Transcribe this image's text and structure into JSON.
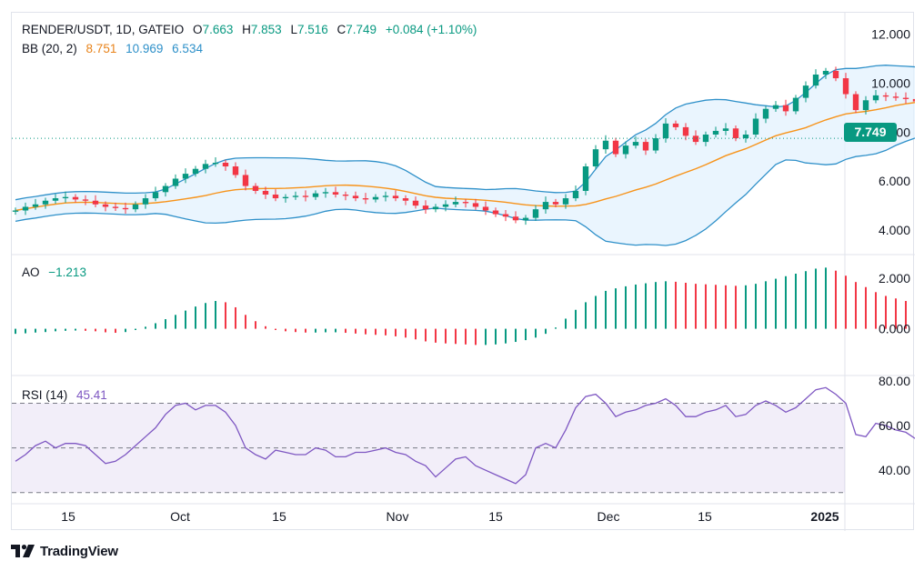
{
  "header": {
    "symbol": "RENDER/USDT, 1D, GATEIO",
    "open_label": "O",
    "open": "7.663",
    "high_label": "H",
    "high": "7.853",
    "low_label": "L",
    "low": "7.516",
    "close_label": "C",
    "close": "7.749",
    "change": "+0.084 (+1.10%)"
  },
  "bb_legend": {
    "name": "BB (20, 2)",
    "basis": "8.751",
    "upper": "10.969",
    "lower": "6.534"
  },
  "ao_legend": {
    "name": "AO",
    "value": "−1.213"
  },
  "rsi_legend": {
    "name": "RSI (14)",
    "value": "45.41"
  },
  "price_tag": "7.749",
  "branding": "TradingView",
  "colors": {
    "up": "#089981",
    "down": "#f23645",
    "bb_basis": "#f7931a",
    "bb_band": "#2e90c9",
    "rsi": "#7e57c2",
    "rsi_bg": "#ede7f6"
  },
  "chart_data": [
    {
      "type": "candlestick",
      "panel": "price",
      "title": "RENDER/USDT, 1D, GATEIO",
      "ylim": [
        3.0,
        12.8
      ],
      "y_ticks": [
        "12.000",
        "10.000",
        "8.000",
        "6.000",
        "4.000"
      ],
      "x_ticks": [
        "15",
        "Oct",
        "15",
        "Nov",
        "15",
        "Dec",
        "15",
        "2025"
      ],
      "last_close": 7.749,
      "close": [
        4.8,
        4.95,
        5.05,
        5.2,
        5.3,
        5.35,
        5.25,
        5.2,
        5.05,
        4.95,
        4.9,
        4.85,
        5.05,
        5.3,
        5.55,
        5.8,
        6.1,
        6.3,
        6.5,
        6.7,
        6.75,
        6.6,
        6.25,
        5.8,
        5.6,
        5.45,
        5.3,
        5.35,
        5.4,
        5.35,
        5.5,
        5.55,
        5.45,
        5.4,
        5.3,
        5.25,
        5.35,
        5.4,
        5.3,
        5.2,
        5.0,
        4.85,
        4.95,
        5.05,
        5.15,
        5.1,
        4.95,
        4.8,
        4.65,
        4.55,
        4.4,
        4.5,
        4.85,
        5.15,
        5.05,
        5.3,
        5.6,
        6.6,
        7.3,
        7.65,
        7.1,
        7.45,
        7.6,
        7.25,
        7.75,
        8.35,
        8.2,
        7.85,
        7.6,
        7.9,
        8.05,
        8.15,
        7.75,
        7.9,
        8.55,
        8.95,
        9.1,
        8.85,
        9.4,
        9.9,
        10.35,
        10.5,
        10.2,
        9.55,
        8.9,
        9.3,
        9.5,
        9.45,
        9.4,
        9.35,
        9.25,
        8.6,
        8.0,
        7.45,
        7.05,
        7.3,
        7.15,
        7.6,
        7.749
      ],
      "ao": [
        -0.2,
        -0.18,
        -0.15,
        -0.13,
        -0.1,
        -0.08,
        -0.07,
        -0.08,
        -0.1,
        -0.14,
        -0.16,
        -0.13,
        -0.05,
        0.08,
        0.22,
        0.38,
        0.55,
        0.72,
        0.88,
        1.02,
        1.1,
        1.05,
        0.85,
        0.55,
        0.3,
        0.1,
        -0.05,
        -0.1,
        -0.13,
        -0.15,
        -0.15,
        -0.14,
        -0.14,
        -0.16,
        -0.19,
        -0.22,
        -0.24,
        -0.26,
        -0.3,
        -0.35,
        -0.42,
        -0.5,
        -0.55,
        -0.58,
        -0.6,
        -0.62,
        -0.64,
        -0.64,
        -0.62,
        -0.58,
        -0.52,
        -0.45,
        -0.35,
        -0.2,
        0.05,
        0.4,
        0.75,
        1.05,
        1.3,
        1.5,
        1.6,
        1.68,
        1.75,
        1.8,
        1.85,
        1.88,
        1.86,
        1.82,
        1.78,
        1.76,
        1.74,
        1.72,
        1.7,
        1.72,
        1.78,
        1.88,
        1.98,
        2.08,
        2.18,
        2.28,
        2.38,
        2.42,
        2.3,
        2.1,
        1.85,
        1.65,
        1.45,
        1.3,
        1.2,
        1.1,
        0.95,
        0.7,
        0.4,
        -0.05,
        -0.5,
        -0.85,
        -1.15,
        -1.3,
        -1.213
      ],
      "rsi": [
        44,
        47,
        51,
        53,
        50,
        52,
        52,
        51,
        47,
        43,
        44,
        47,
        51,
        55,
        59,
        65,
        69,
        70,
        67,
        69,
        69,
        66,
        60,
        50,
        47,
        45,
        49,
        48,
        47,
        47,
        50,
        49,
        46,
        46,
        48,
        48,
        49,
        50,
        48,
        47,
        44,
        42,
        37,
        41,
        45,
        46,
        42,
        40,
        38,
        36,
        34,
        38,
        50,
        52,
        50,
        58,
        68,
        73,
        74,
        70,
        64,
        66,
        67,
        69,
        70,
        72,
        69,
        64,
        64,
        66,
        67,
        69,
        64,
        65,
        69,
        71,
        69,
        66,
        68,
        72,
        76,
        77,
        74,
        70,
        56,
        55,
        61,
        60,
        58,
        57,
        54,
        49,
        45,
        40,
        39,
        41,
        38,
        42,
        45.41
      ],
      "rsi_levels": [
        70,
        50,
        30
      ],
      "rsi_ylim": [
        25,
        82
      ],
      "rsi_ticks": [
        "80.00",
        "60.00",
        "40.00"
      ],
      "ao_ticks": [
        "2.000",
        "0.000"
      ],
      "ao_ylim": [
        -1.85,
        2.9
      ]
    }
  ]
}
